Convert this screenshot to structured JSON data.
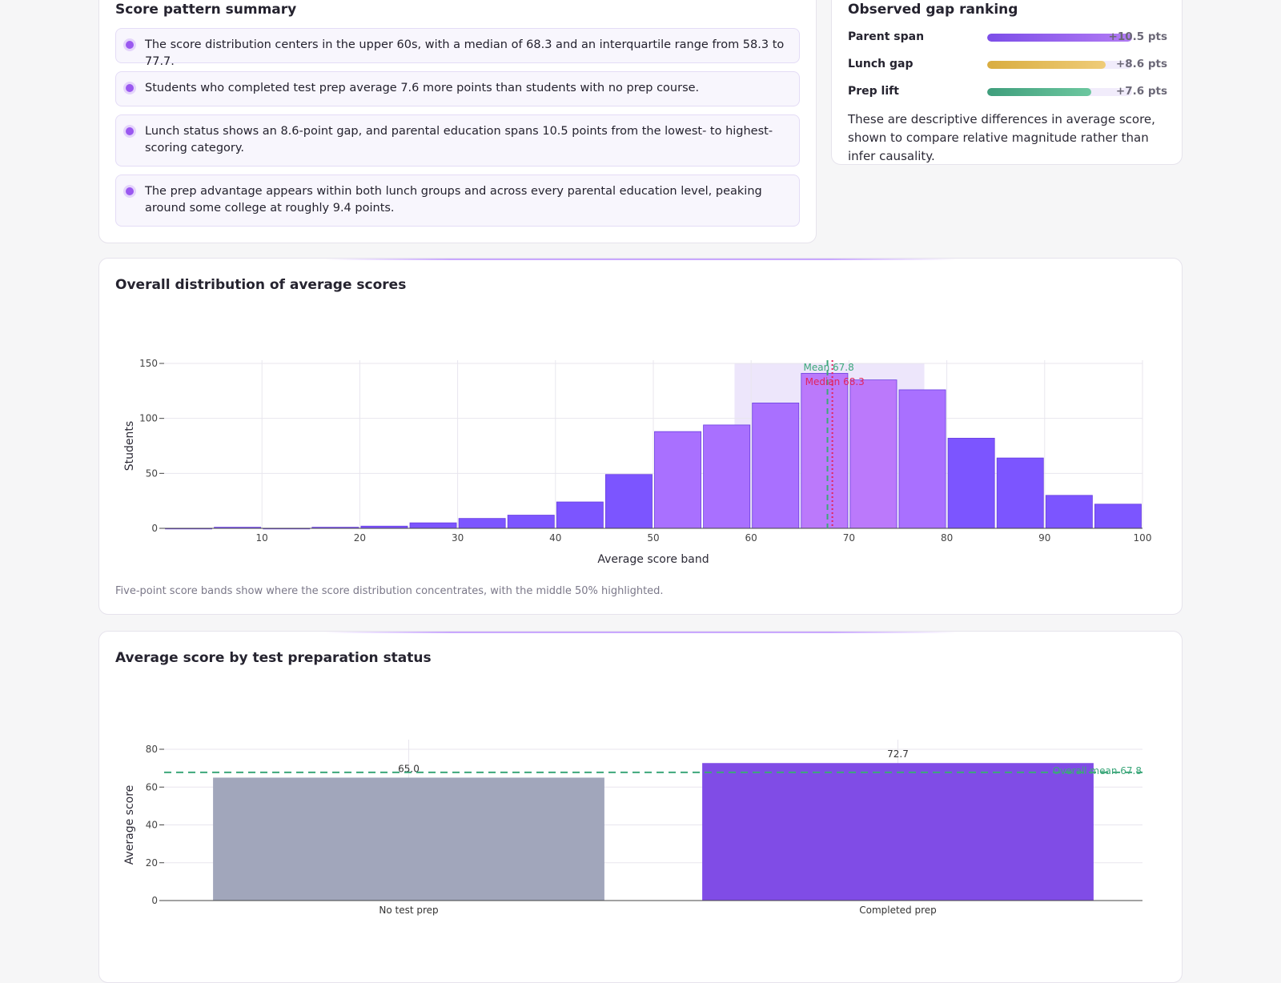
{
  "summary": {
    "title": "Score pattern summary",
    "insights": [
      "The score distribution centers in the upper 60s, with a median of 68.3 and an interquartile range from 58.3 to 77.7.",
      "Students who completed test prep average 7.6 more points than students with no prep course.",
      "Lunch status shows an 8.6-point gap, and parental education spans 10.5 points from the lowest- to highest-scoring category.",
      "The prep advantage appears within both lunch groups and across every parental education level, peaking around some college at roughly 9.4 points."
    ]
  },
  "gap_ranking": {
    "title": "Observed gap ranking",
    "items": [
      {
        "label": "Parent span",
        "value": "+10.5 pts",
        "fraction": 1.0,
        "color_start": "#7c4ee8",
        "color_end": "#b27bf4"
      },
      {
        "label": "Lunch gap",
        "value": "+8.6 pts",
        "fraction": 0.82,
        "color_start": "#d9ad40",
        "color_end": "#efcc78"
      },
      {
        "label": "Prep lift",
        "value": "+7.6 pts",
        "fraction": 0.72,
        "color_start": "#3f9e7c",
        "color_end": "#6cc79f"
      }
    ],
    "note": "These are descriptive differences in average score, shown to compare relative magnitude rather than infer causality."
  },
  "distribution": {
    "title": "Overall distribution of average scores",
    "caption": "Five-point score bands show where the score distribution concentrates, with the middle 50% highlighted."
  },
  "prep": {
    "title": "Average score by test preparation status"
  },
  "chart_data": [
    {
      "type": "bar",
      "title": "Overall distribution of average scores",
      "xlabel": "Average score band",
      "ylabel": "Students",
      "band_edges": [
        0,
        5,
        10,
        15,
        20,
        25,
        30,
        35,
        40,
        45,
        50,
        55,
        60,
        65,
        70,
        75,
        80,
        85,
        90,
        95,
        100
      ],
      "values": [
        0,
        1,
        0,
        1,
        2,
        5,
        9,
        12,
        24,
        49,
        88,
        94,
        114,
        141,
        135,
        126,
        82,
        64,
        30,
        22
      ],
      "xlim": [
        0,
        100
      ],
      "ylim": [
        0,
        150
      ],
      "xticks": [
        10,
        20,
        30,
        40,
        50,
        60,
        70,
        80,
        90,
        100
      ],
      "yticks": [
        0,
        50,
        100,
        150
      ],
      "highlight_range": [
        58.3,
        77.7
      ],
      "mean": 67.8,
      "median": 68.3,
      "mean_label": "Mean 67.8",
      "median_label": "Median 68.3",
      "grid": true,
      "colors": {
        "outer": "#7c55ff",
        "inner": "#a970ff",
        "peak": "#bb79fb",
        "highlight": "#ede6fb",
        "mean": "#3ca77a",
        "median": "#e0245e"
      }
    },
    {
      "type": "bar",
      "title": "Average score by test preparation status",
      "xlabel": "",
      "ylabel": "Average score",
      "categories": [
        "No test prep",
        "Completed prep"
      ],
      "values": [
        65.0,
        72.7
      ],
      "value_labels": [
        "65.0",
        "72.7"
      ],
      "ylim": [
        0,
        80
      ],
      "yticks": [
        0,
        20,
        40,
        60,
        80
      ],
      "reference_value": 67.8,
      "reference_label": "Overall mean 67.8",
      "grid": true,
      "colors": {
        "bars": [
          "#a1a6bb",
          "#804ce6"
        ],
        "reference": "#3ca77a"
      }
    }
  ]
}
